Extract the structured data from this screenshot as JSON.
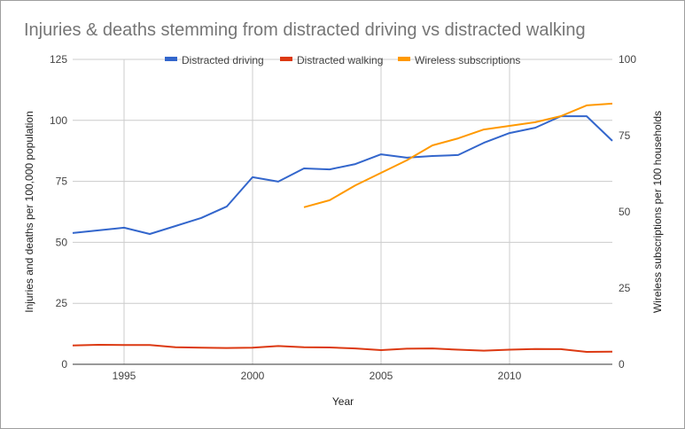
{
  "chart_data": {
    "type": "line",
    "title": "Injuries & deaths stemming from distracted driving vs distracted walking",
    "xlabel": "Year",
    "ylabel": "Injuries and deaths per 100,000 population",
    "ylabel_right": "Wireless subscriptions per 100 households",
    "xlim": [
      1993,
      2014
    ],
    "ylim": [
      0,
      125
    ],
    "ylim_right": [
      0,
      100
    ],
    "x_ticks": [
      1995,
      2000,
      2005,
      2010
    ],
    "y_ticks": [
      0,
      25,
      50,
      75,
      100,
      125
    ],
    "y_ticks_right": [
      0,
      25,
      50,
      75,
      100
    ],
    "grid": true,
    "legend_position": "top",
    "x": [
      1993,
      1994,
      1995,
      1996,
      1997,
      1998,
      1999,
      2000,
      2001,
      2002,
      2003,
      2004,
      2005,
      2006,
      2007,
      2008,
      2009,
      2010,
      2011,
      2012,
      2013,
      2014
    ],
    "series": [
      {
        "name": "Distracted driving",
        "axis": "left",
        "color": "#3366cc",
        "values": [
          53.8,
          54.9,
          56,
          53.4,
          56.7,
          60,
          64.7,
          76.7,
          74.9,
          80.3,
          79.9,
          82.1,
          86.1,
          84.7,
          85.4,
          85.8,
          90.8,
          94.8,
          97,
          101.7,
          101.7,
          91.6
        ]
      },
      {
        "name": "Distracted walking",
        "axis": "left",
        "color": "#dc3912",
        "values": [
          7.7,
          8.0,
          7.9,
          7.9,
          7.0,
          6.8,
          6.7,
          6.8,
          7.5,
          7.0,
          6.9,
          6.5,
          5.8,
          6.4,
          6.5,
          6.0,
          5.6,
          6.0,
          6.3,
          6.2,
          5.1,
          5.2
        ]
      },
      {
        "name": "Wireless subscriptions",
        "axis": "right",
        "color": "#ff9900",
        "values": [
          null,
          null,
          null,
          null,
          null,
          null,
          null,
          null,
          null,
          51.5,
          53.8,
          58.7,
          62.8,
          66.9,
          71.8,
          74.1,
          77,
          78.2,
          79.4,
          81.4,
          84.9,
          85.5
        ]
      }
    ]
  }
}
